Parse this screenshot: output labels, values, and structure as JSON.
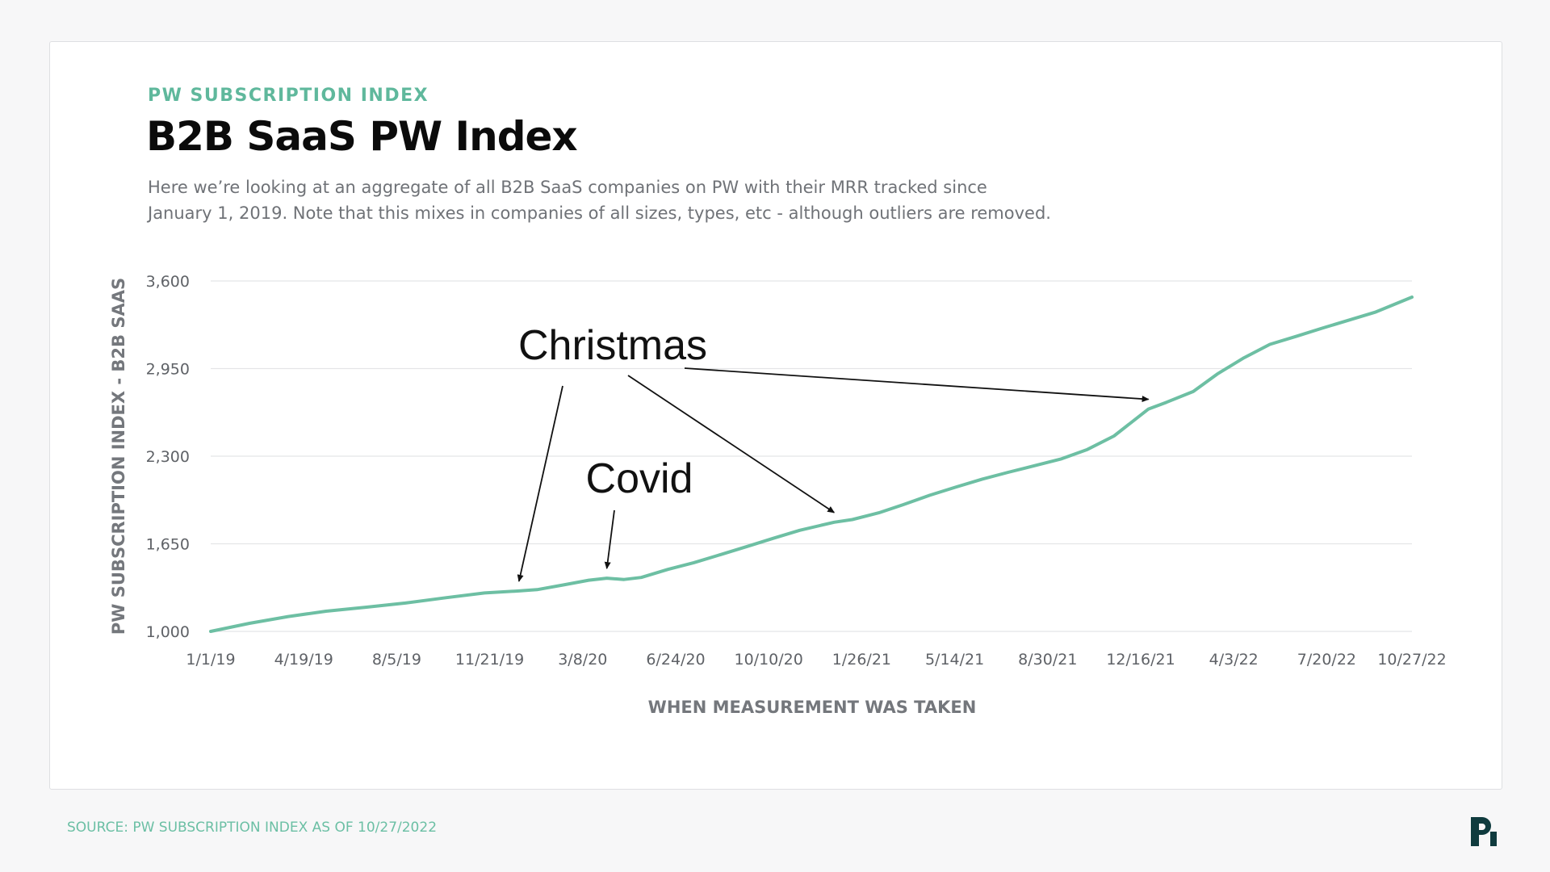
{
  "header": {
    "eyebrow": "PW SUBSCRIPTION INDEX",
    "title": "B2B SaaS PW Index",
    "description_line1": "Here we’re looking at an aggregate of all B2B SaaS companies on PW with their MRR tracked since",
    "description_line2": "January 1, 2019. Note that this mixes in companies of all sizes, types, etc - although outliers are removed."
  },
  "footer": {
    "source": "SOURCE: PW SUBSCRIPTION INDEX AS OF 10/27/2022"
  },
  "colors": {
    "accent": "#5fb89c",
    "line": "#6dbfa3",
    "grid": "#e4e5e7",
    "logo": "#0f3b3e"
  },
  "logo_icon": "pw-logo-icon",
  "chart_data": {
    "type": "line",
    "xlabel": "WHEN MEASUREMENT WAS TAKEN",
    "ylabel": "PW SUBSCRIPTION INDEX - B2B SAAS",
    "ylim": [
      1000,
      3600
    ],
    "yticks": [
      1000,
      1650,
      2300,
      2950,
      3600
    ],
    "ytick_labels": [
      "1,000",
      "1,650",
      "2,300",
      "2,950",
      "3,600"
    ],
    "xlim": [
      "2019-01-01",
      "2022-10-27"
    ],
    "xticks": [
      {
        "date": "2019-01-01",
        "label": "1/1/19"
      },
      {
        "date": "2019-04-19",
        "label": "4/19/19"
      },
      {
        "date": "2019-08-05",
        "label": "8/5/19"
      },
      {
        "date": "2019-11-21",
        "label": "11/21/19"
      },
      {
        "date": "2020-03-08",
        "label": "3/8/20"
      },
      {
        "date": "2020-06-24",
        "label": "6/24/20"
      },
      {
        "date": "2020-10-10",
        "label": "10/10/20"
      },
      {
        "date": "2021-01-26",
        "label": "1/26/21"
      },
      {
        "date": "2021-05-14",
        "label": "5/14/21"
      },
      {
        "date": "2021-08-30",
        "label": "8/30/21"
      },
      {
        "date": "2021-12-16",
        "label": "12/16/21"
      },
      {
        "date": "2022-04-03",
        "label": "4/3/22"
      },
      {
        "date": "2022-07-20",
        "label": "7/20/22"
      },
      {
        "date": "2022-10-27",
        "label": "10/27/22"
      }
    ],
    "grid": true,
    "series": [
      {
        "x": [
          "2019-01-01",
          "2019-02-15",
          "2019-04-01",
          "2019-05-15",
          "2019-07-01",
          "2019-08-15",
          "2019-10-01",
          "2019-11-15",
          "2019-12-25",
          "2020-01-15",
          "2020-02-15",
          "2020-03-15",
          "2020-04-05",
          "2020-04-25",
          "2020-05-15",
          "2020-06-15",
          "2020-07-15",
          "2020-08-15",
          "2020-09-15",
          "2020-10-15",
          "2020-11-15",
          "2020-12-25",
          "2021-01-15",
          "2021-02-15",
          "2021-03-15",
          "2021-04-15",
          "2021-05-15",
          "2021-06-15",
          "2021-07-15",
          "2021-08-15",
          "2021-09-15",
          "2021-10-15",
          "2021-11-15",
          "2021-12-25",
          "2022-01-15",
          "2022-02-15",
          "2022-03-15",
          "2022-04-15",
          "2022-05-15",
          "2022-06-15",
          "2022-07-15",
          "2022-08-15",
          "2022-09-15",
          "2022-10-27"
        ],
        "y": [
          1000,
          1060,
          1110,
          1150,
          1180,
          1210,
          1250,
          1285,
          1300,
          1310,
          1345,
          1380,
          1395,
          1385,
          1400,
          1460,
          1510,
          1570,
          1630,
          1690,
          1750,
          1810,
          1830,
          1880,
          1940,
          2010,
          2070,
          2130,
          2180,
          2230,
          2280,
          2350,
          2450,
          2650,
          2700,
          2780,
          2910,
          3030,
          3130,
          3190,
          3250,
          3310,
          3370,
          3480
        ]
      }
    ],
    "annotations": [
      {
        "label": "Christmas",
        "targets": [
          "2019-12-25",
          "2020-12-25",
          "2021-12-25"
        ]
      },
      {
        "label": "Covid",
        "targets": [
          "2020-04-05"
        ]
      }
    ]
  }
}
